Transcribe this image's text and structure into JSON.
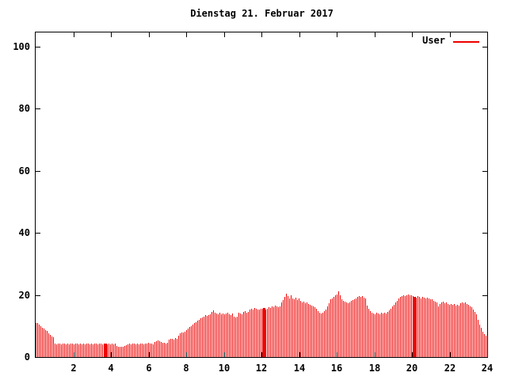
{
  "chart_data": {
    "type": "bar",
    "title": "Dienstag 21. Februar 2017",
    "series_name": "User",
    "xlabel": "",
    "ylabel": "",
    "xlim": [
      0,
      24
    ],
    "ylim": [
      0,
      100
    ],
    "x_ticks": [
      2,
      4,
      6,
      8,
      10,
      12,
      14,
      16,
      18,
      20,
      22,
      24
    ],
    "y_ticks": [
      0,
      20,
      40,
      60,
      80,
      100
    ],
    "x_unit": "hour of day",
    "sample_interval_hours": 0.0842,
    "grid": false,
    "legend_position": "top-right-inside",
    "bar_color": "#ee0000",
    "axis_color": "#000000",
    "background_color": "#ffffff",
    "dense_bar_indices": [
      44,
      144,
      239
    ],
    "values": [
      10.9,
      10.9,
      10.4,
      9.9,
      9.5,
      9.1,
      8.7,
      8.3,
      7.7,
      7.1,
      6.7,
      6.4,
      4.4,
      4.2,
      4.3,
      4.3,
      4.1,
      4.3,
      4.4,
      4.2,
      4.3,
      4.1,
      4.3,
      4.4,
      4.2,
      4.3,
      4.3,
      4.1,
      4.4,
      4.2,
      4.3,
      4.1,
      4.3,
      4.4,
      4.2,
      4.3,
      4.1,
      4.3,
      4.4,
      4.2,
      4.3,
      4.3,
      4.1,
      4.3,
      4.4,
      4.2,
      4.3,
      4.1,
      4.3,
      4.2,
      4.3,
      3.6,
      3.4,
      3.3,
      3.3,
      3.4,
      3.5,
      3.8,
      4.2,
      4.3,
      4.1,
      4.3,
      4.4,
      4.2,
      4.3,
      4.1,
      4.4,
      4.3,
      4.2,
      4.4,
      4.3,
      4.5,
      4.3,
      4.4,
      4.2,
      4.9,
      5.2,
      5.3,
      5.0,
      4.8,
      4.5,
      4.6,
      4.4,
      4.7,
      5.5,
      5.8,
      5.9,
      5.7,
      6.0,
      5.9,
      7.0,
      7.6,
      8.0,
      7.9,
      8.2,
      8.8,
      9.2,
      9.6,
      10.0,
      10.4,
      10.9,
      11.3,
      11.7,
      12.1,
      12.4,
      12.8,
      13.1,
      13.4,
      13.2,
      13.6,
      13.9,
      14.6,
      15.1,
      14.4,
      14.0,
      13.8,
      14.2,
      13.9,
      14.1,
      13.7,
      14.0,
      14.2,
      13.8,
      13.6,
      14.0,
      13.0,
      12.8,
      13.1,
      14.3,
      14.0,
      13.8,
      14.5,
      14.7,
      14.4,
      14.6,
      15.3,
      15.6,
      15.4,
      15.8,
      15.5,
      15.2,
      15.4,
      15.6,
      15.5,
      15.7,
      15.3,
      15.5,
      16.0,
      15.8,
      16.3,
      16.1,
      16.5,
      16.2,
      16.0,
      16.4,
      17.5,
      18.3,
      19.3,
      20.4,
      19.6,
      19.0,
      19.8,
      18.9,
      18.6,
      19.2,
      18.4,
      18.8,
      18.0,
      17.6,
      17.9,
      17.3,
      17.5,
      17.0,
      16.8,
      16.5,
      16.2,
      16.0,
      15.5,
      14.8,
      14.3,
      14.0,
      14.4,
      14.9,
      15.3,
      16.2,
      17.4,
      18.6,
      19.0,
      19.4,
      19.8,
      20.1,
      21.2,
      19.8,
      18.5,
      18.2,
      17.8,
      17.5,
      17.3,
      17.6,
      18.0,
      18.3,
      18.6,
      19.0,
      19.4,
      19.7,
      19.3,
      19.6,
      19.1,
      18.8,
      16.5,
      15.6,
      14.9,
      14.4,
      14.1,
      13.9,
      14.2,
      14.0,
      13.8,
      14.2,
      14.0,
      14.3,
      14.1,
      14.5,
      15.0,
      15.6,
      16.2,
      16.8,
      17.5,
      18.2,
      18.8,
      19.3,
      19.7,
      20.0,
      19.6,
      19.9,
      20.1,
      19.8,
      20.0,
      19.7,
      19.5,
      19.2,
      19.6,
      19.3,
      19.0,
      19.4,
      19.1,
      18.9,
      19.2,
      19.0,
      18.7,
      18.5,
      18.2,
      17.8,
      17.5,
      16.3,
      17.2,
      17.6,
      17.9,
      17.4,
      17.7,
      17.2,
      16.9,
      17.1,
      16.8,
      17.0,
      16.6,
      16.9,
      16.5,
      17.3,
      17.6,
      17.4,
      17.7,
      17.2,
      16.8,
      16.4,
      16.0,
      15.4,
      14.5,
      13.7,
      12.0,
      10.5,
      9.5,
      8.2,
      7.4,
      6.8
    ]
  }
}
